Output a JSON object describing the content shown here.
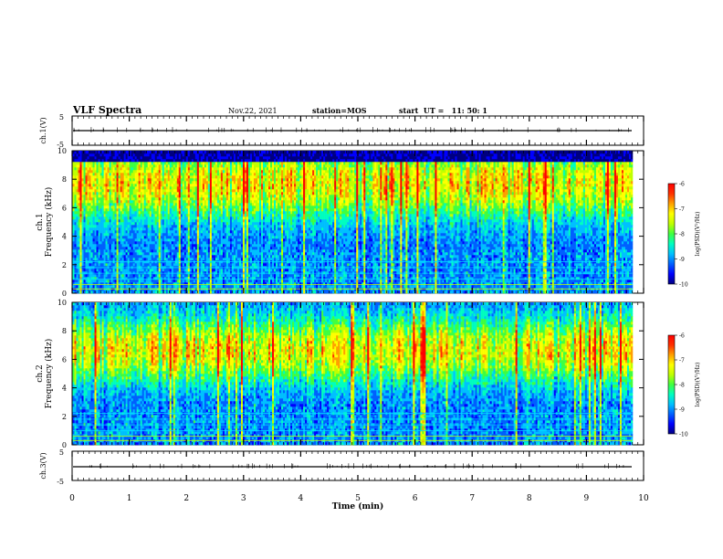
{
  "header": {
    "title": "VLF Spectra",
    "date": "Nov.22, 2021",
    "station": "station=MOS",
    "start_time": "start  UT =   11: 50: 1"
  },
  "colors": {
    "background": "#ffffff",
    "axis": "#000000",
    "colormap": [
      "#000080",
      "#0000ff",
      "#0060ff",
      "#00c0ff",
      "#00ffc0",
      "#40ff40",
      "#c0ff00",
      "#ffff00",
      "#ffa000",
      "#ff3000",
      "#ff0000"
    ]
  },
  "chart_data": [
    {
      "type": "line",
      "name": "ch1-waveform",
      "ylabel": "ch.1(V)",
      "ylim": [
        -5,
        5
      ],
      "y_ticks": [
        "5",
        "-5"
      ],
      "xlim": [
        0,
        10
      ],
      "baseline_value": -0.2
    },
    {
      "type": "heatmap",
      "name": "ch1-spectrogram",
      "ylabel": "ch.1\nFrequency (kHz)",
      "ylim": [
        0,
        10
      ],
      "y_ticks": [
        "0",
        "2",
        "4",
        "6",
        "8",
        "10"
      ],
      "xlim": [
        0,
        10
      ],
      "data_end_min": 9.8,
      "energy_band_khz": [
        0,
        9.3
      ],
      "peak_band_khz": [
        6.5,
        8.9
      ],
      "colorbar": {
        "label": "log(PSD)(V²/Hz)",
        "min": -10,
        "max": -6,
        "ticks": [
          "-6",
          "-7",
          "-8",
          "-9",
          "-10"
        ]
      }
    },
    {
      "type": "heatmap",
      "name": "ch2-spectrogram",
      "ylabel": "ch.2\nFrequency (kHz)",
      "ylim": [
        0,
        10
      ],
      "y_ticks": [
        "0",
        "2",
        "4",
        "6",
        "8",
        "10"
      ],
      "xlim": [
        0,
        10
      ],
      "data_end_min": 9.8,
      "energy_band_khz": [
        0,
        10
      ],
      "peak_band_khz": [
        5.5,
        7.8
      ],
      "colorbar": {
        "label": "log(PSD)(V²/Hz)",
        "min": -10,
        "max": -6,
        "ticks": [
          "-6",
          "-7",
          "-8",
          "-9",
          "-10"
        ]
      }
    },
    {
      "type": "line",
      "name": "ch3-waveform",
      "ylabel": "ch.3(V)",
      "ylim": [
        -5,
        5
      ],
      "y_ticks": [
        "5",
        "-5"
      ],
      "xlim": [
        0,
        10
      ],
      "baseline_value": -0.2
    }
  ],
  "x_axis": {
    "label": "Time (min)",
    "ticks": [
      "0",
      "1",
      "2",
      "3",
      "4",
      "5",
      "6",
      "7",
      "8",
      "9",
      "10"
    ]
  }
}
